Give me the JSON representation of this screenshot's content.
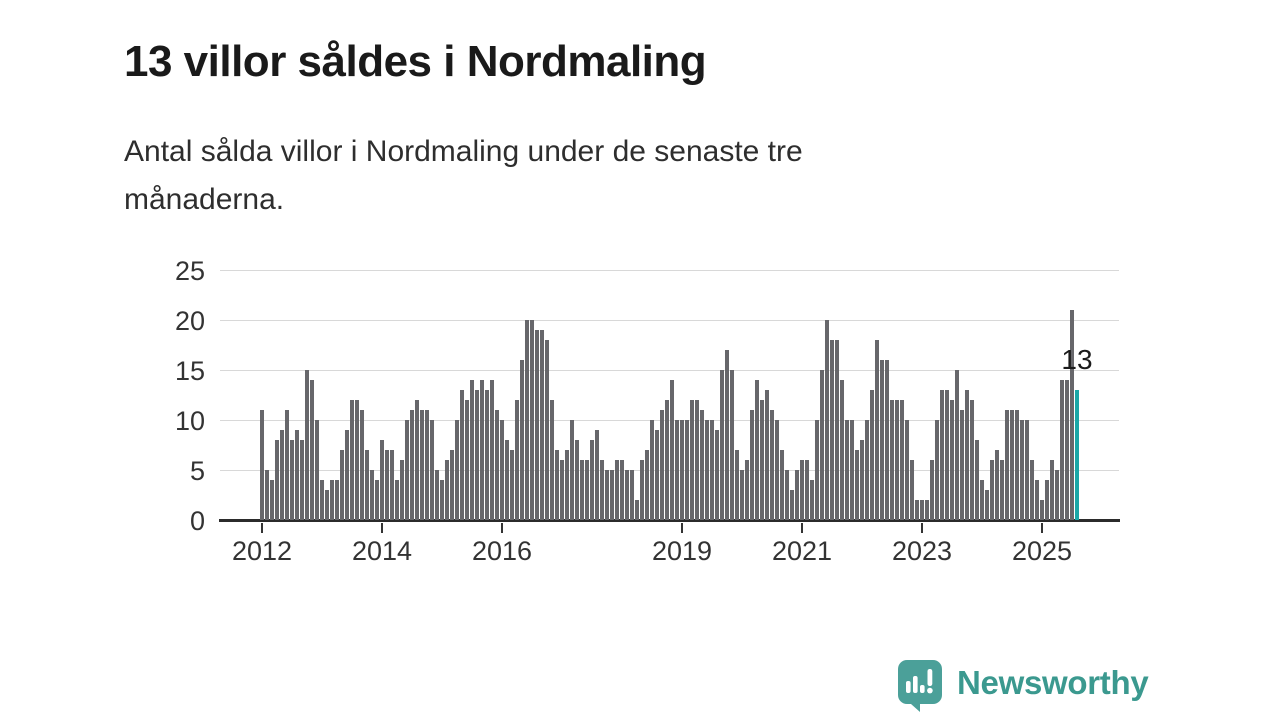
{
  "header": {
    "title": "13 villor såldes i Nordmaling",
    "subtitle_line1": "Antal sålda villor i Nordmaling under de senaste tre",
    "subtitle_line2": "månaderna."
  },
  "chart_data": {
    "type": "bar",
    "title": "13 villor såldes i Nordmaling",
    "xlabel": "",
    "ylabel": "",
    "ylim": [
      0,
      25
    ],
    "grid": true,
    "legend": false,
    "y_ticks": [
      0,
      5,
      10,
      15,
      20,
      25
    ],
    "x_ticks": [
      {
        "label": "2012",
        "month_index": 0
      },
      {
        "label": "2014",
        "month_index": 24
      },
      {
        "label": "2016",
        "month_index": 48
      },
      {
        "label": "2019",
        "month_index": 84
      },
      {
        "label": "2021",
        "month_index": 108
      },
      {
        "label": "2023",
        "month_index": 132
      },
      {
        "label": "2025",
        "month_index": 156
      }
    ],
    "period_start": "2012-01",
    "period_end": "2025-08",
    "values": [
      11,
      5,
      4,
      8,
      9,
      11,
      8,
      9,
      8,
      15,
      14,
      10,
      4,
      3,
      4,
      4,
      7,
      9,
      12,
      12,
      11,
      7,
      5,
      4,
      8,
      7,
      7,
      4,
      6,
      10,
      11,
      12,
      11,
      11,
      10,
      5,
      4,
      6,
      7,
      10,
      13,
      12,
      14,
      13,
      14,
      13,
      14,
      11,
      10,
      8,
      7,
      12,
      16,
      20,
      20,
      19,
      19,
      18,
      12,
      7,
      6,
      7,
      10,
      8,
      6,
      6,
      8,
      9,
      6,
      5,
      5,
      6,
      6,
      5,
      5,
      2,
      6,
      7,
      10,
      9,
      11,
      12,
      14,
      10,
      10,
      10,
      12,
      12,
      11,
      10,
      10,
      9,
      15,
      17,
      15,
      7,
      5,
      6,
      11,
      14,
      12,
      13,
      11,
      10,
      7,
      5,
      3,
      5,
      6,
      6,
      4,
      10,
      15,
      20,
      18,
      18,
      14,
      10,
      10,
      7,
      8,
      10,
      13,
      18,
      16,
      16,
      12,
      12,
      12,
      10,
      6,
      2,
      2,
      2,
      6,
      10,
      13,
      13,
      12,
      15,
      11,
      13,
      12,
      8,
      4,
      3,
      6,
      7,
      6,
      11,
      11,
      11,
      10,
      10,
      6,
      4,
      2,
      4,
      6,
      5,
      14,
      14,
      21,
      13
    ],
    "highlighted_last_value": 13,
    "annotation_label": "13"
  },
  "colors": {
    "bar": "#67676b",
    "highlight": "#1aa7a7",
    "grid": "#d8d8d8",
    "axis": "#2b2b2b",
    "tick_text": "#333333",
    "title_text": "#1a1a1a",
    "logo_text": "#3b998f",
    "logo_icon": "#4ba099"
  },
  "footer": {
    "logo_text": "Newsworthy"
  }
}
